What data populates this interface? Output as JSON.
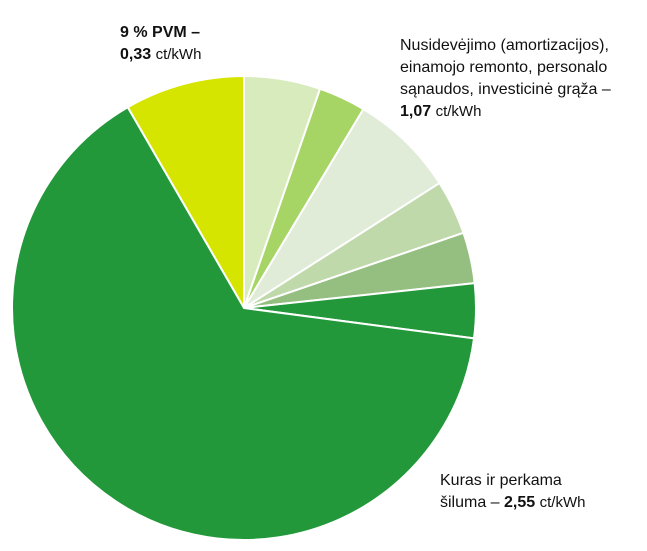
{
  "chart_data": {
    "type": "pie",
    "title": "",
    "units": "ct/kWh",
    "slices": [
      {
        "key": "fuel",
        "value": 2.55,
        "color": "#22983a"
      },
      {
        "key": "pvm",
        "value": 0.33,
        "color": "#d6e500"
      },
      {
        "key": "dep_1",
        "value": 0.21,
        "color": "#d8ebbc"
      },
      {
        "key": "dep_2",
        "value": 0.13,
        "color": "#a6d566"
      },
      {
        "key": "dep_3",
        "value": 0.29,
        "color": "#e0ebd8"
      },
      {
        "key": "dep_4",
        "value": 0.15,
        "color": "#c0d9aa"
      },
      {
        "key": "dep_5",
        "value": 0.14,
        "color": "#94bf80"
      },
      {
        "key": "dep_6",
        "value": 0.15,
        "color": "#22983a"
      }
    ],
    "start_slice": "pvm",
    "labels": {
      "pvm": {
        "line1": "9 % PVM –",
        "value": "0,33",
        "unit": "ct/kWh"
      },
      "depreciation": {
        "line1": "Nusidevėjimo (amortizacijos),",
        "line2": "einamojo remonto, personalo",
        "line3": "sąnaudos, investicinė grąža –",
        "value": "1,07",
        "unit": "ct/kWh"
      },
      "fuel": {
        "line1": "Kuras ir perkama",
        "line2_prefix": "šiluma – ",
        "value": "2,55",
        "unit": "ct/kWh"
      }
    }
  }
}
